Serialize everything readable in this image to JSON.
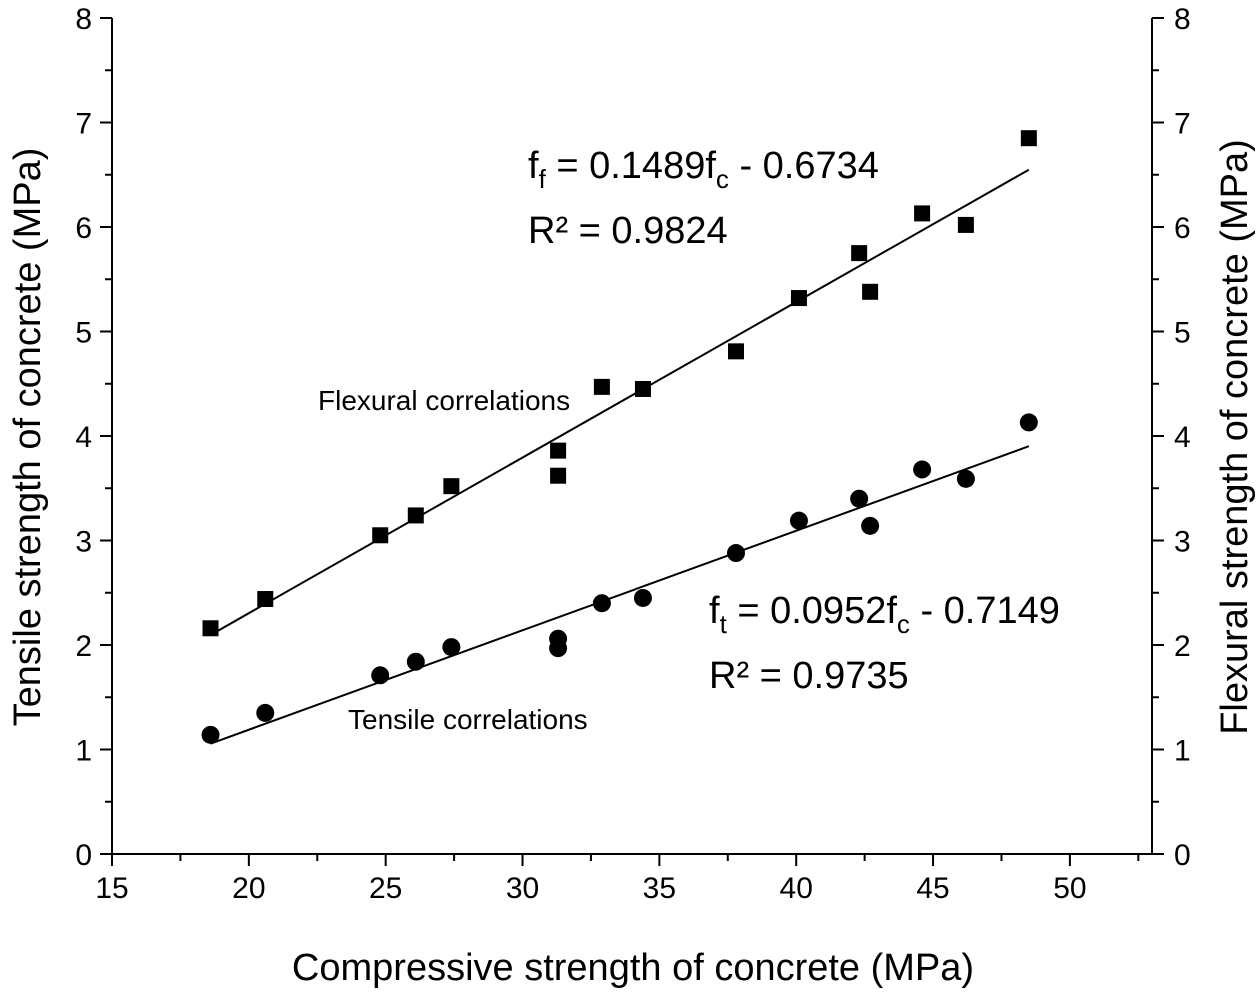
{
  "chart_data": {
    "type": "scatter",
    "xlabel": "Compressive strength of concrete (MPa)",
    "ylabel_left": "Tensile strength of concrete (MPa)",
    "ylabel_right": "Flexural strength of concrete (MPa)",
    "xlim": [
      15,
      53
    ],
    "ylim": [
      0,
      8
    ],
    "x_ticks": [
      15,
      20,
      25,
      30,
      35,
      40,
      45,
      50
    ],
    "y_ticks": [
      0,
      1,
      2,
      3,
      4,
      5,
      6,
      7,
      8
    ],
    "grid": false,
    "series": [
      {
        "name": "Flexural correlations",
        "marker": "square",
        "x": [
          18.6,
          20.6,
          24.8,
          26.1,
          27.4,
          31.3,
          31.3,
          32.9,
          34.4,
          37.8,
          40.1,
          42.3,
          42.7,
          44.6,
          46.2,
          48.5
        ],
        "y": [
          2.16,
          2.44,
          3.05,
          3.24,
          3.52,
          3.62,
          3.86,
          4.47,
          4.45,
          4.81,
          5.32,
          5.75,
          5.38,
          6.13,
          6.02,
          6.85
        ],
        "fit": {
          "slope": 0.1489,
          "intercept": -0.6734,
          "x_range": [
            18.6,
            48.5
          ]
        }
      },
      {
        "name": "Tensile correlations",
        "marker": "circle",
        "x": [
          18.6,
          20.6,
          24.8,
          26.1,
          27.4,
          31.3,
          31.3,
          32.9,
          34.4,
          37.8,
          40.1,
          42.3,
          42.7,
          44.6,
          46.2,
          48.5
        ],
        "y": [
          1.14,
          1.35,
          1.71,
          1.84,
          1.98,
          1.97,
          2.06,
          2.4,
          2.45,
          2.88,
          3.19,
          3.4,
          3.14,
          3.68,
          3.59,
          4.13
        ],
        "fit": {
          "slope": 0.0952,
          "intercept": -0.7149,
          "x_range": [
            18.6,
            48.5
          ]
        }
      }
    ],
    "annotations": {
      "flexural_eq": {
        "main": "f",
        "sub1": "f",
        "mid": " = 0.1489f",
        "sub2": "c",
        "tail": " - 0.6734"
      },
      "flexural_r2": "R² = 0.9824",
      "flexural_label": "Flexural correlations",
      "tensile_eq": {
        "main": "f",
        "sub1": "t",
        "mid": " = 0.0952f",
        "sub2": "c",
        "tail": " - 0.7149"
      },
      "tensile_r2": "R² = 0.9735",
      "tensile_label": "Tensile correlations"
    },
    "colors": {
      "axis": "#000000",
      "marker": "#000000",
      "line": "#000000"
    }
  }
}
